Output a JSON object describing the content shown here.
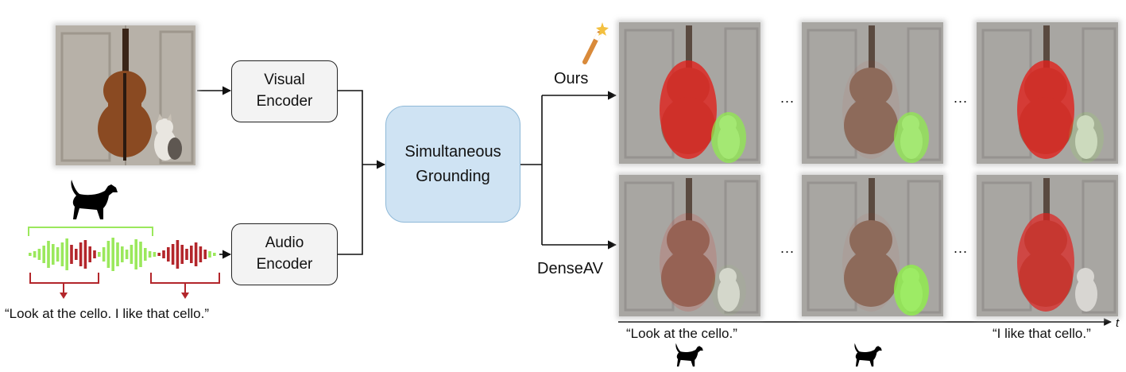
{
  "visual_encoder": "Visual\nEncoder",
  "audio_encoder": "Audio\nEncoder",
  "grounding": "Simultaneous\nGrounding",
  "method_ours": "Ours",
  "method_baseline": "DenseAV",
  "transcript": "“Look at the cello. I like that cello.”",
  "time_label_start": "“Look at the cello.”",
  "time_label_end": "“I like that cello.”",
  "time_axis": "t",
  "ellipsis": "...",
  "icons": [
    "cat-icon",
    "magic-wand-icon",
    "cello-image"
  ],
  "colors": {
    "cat_highlight": "#8ff04a",
    "cello_highlight": "#e0201c",
    "grounding_fill": "#cfe3f3",
    "wave_green": "#9be85c",
    "wave_red": "#b3262b"
  }
}
